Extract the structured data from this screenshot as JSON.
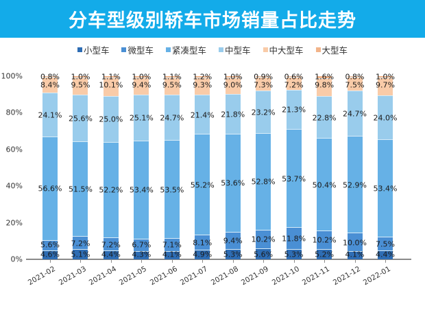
{
  "header": {
    "title": "分车型级别轿车市场销量占比走势"
  },
  "chart_data": {
    "type": "bar",
    "stacked": true,
    "percent_stacked": true,
    "title": "分车型级别轿车市场销量占比走势",
    "xlabel": "",
    "ylabel": "",
    "ylim": [
      0,
      100
    ],
    "yticks": [
      "0%",
      "20%",
      "40%",
      "60%",
      "80%",
      "100%"
    ],
    "legend_position": "top",
    "grid": false,
    "categories": [
      "2021-02",
      "2021-03",
      "2021-04",
      "2021-05",
      "2021-06",
      "2021-07",
      "2021-08",
      "2021-09",
      "2021-10",
      "2021-11",
      "2021-12",
      "2022-01"
    ],
    "series": [
      {
        "name": "小型车",
        "color": "#2E6DB4",
        "values": [
          4.6,
          5.1,
          4.4,
          4.3,
          4.1,
          4.9,
          5.3,
          5.6,
          5.3,
          5.2,
          4.1,
          4.4
        ]
      },
      {
        "name": "微型车",
        "color": "#4A8FD4",
        "values": [
          5.6,
          7.2,
          7.2,
          6.7,
          7.1,
          8.1,
          9.4,
          10.2,
          11.8,
          10.2,
          10.0,
          7.5
        ]
      },
      {
        "name": "紧凑型车",
        "color": "#66B1E6",
        "values": [
          56.6,
          51.5,
          52.2,
          53.4,
          53.5,
          55.2,
          53.6,
          52.8,
          53.7,
          50.4,
          52.9,
          53.4
        ]
      },
      {
        "name": "中型车",
        "color": "#99CCEC",
        "values": [
          24.1,
          25.6,
          25.0,
          25.1,
          24.7,
          21.4,
          21.8,
          23.2,
          21.3,
          22.8,
          24.7,
          24.0
        ]
      },
      {
        "name": "中大型车",
        "color": "#F9CBA8",
        "values": [
          8.4,
          9.5,
          10.1,
          9.4,
          9.5,
          9.3,
          9.0,
          7.3,
          7.2,
          9.8,
          7.5,
          9.7
        ]
      },
      {
        "name": "大型车",
        "color": "#F2B48A",
        "values": [
          0.8,
          1.0,
          1.1,
          1.0,
          1.1,
          1.2,
          1.0,
          0.9,
          0.6,
          1.6,
          0.8,
          1.0
        ]
      }
    ]
  }
}
